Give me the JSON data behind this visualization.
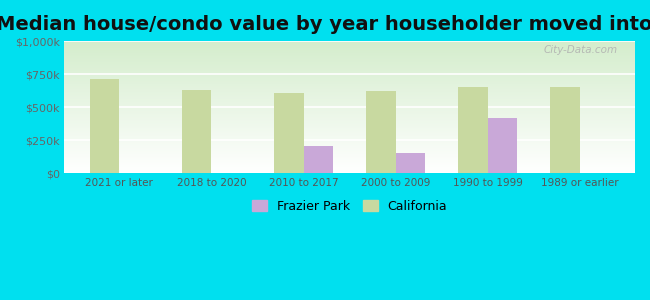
{
  "title": "Median house/condo value by year householder moved into unit",
  "categories": [
    "2021 or later",
    "2018 to 2020",
    "2010 to 2017",
    "2000 to 2009",
    "1990 to 1999",
    "1989 or earlier"
  ],
  "frazier_park": [
    null,
    null,
    210000,
    155000,
    420000,
    null
  ],
  "california": [
    710000,
    630000,
    605000,
    620000,
    650000,
    655000
  ],
  "frazier_color": "#c9a8d8",
  "california_color": "#c8d9a0",
  "background_color": "#00e0ef",
  "ylabel_ticks": [
    "$0",
    "$250k",
    "$500k",
    "$750k",
    "$1,000k"
  ],
  "ytick_values": [
    0,
    250000,
    500000,
    750000,
    1000000
  ],
  "ylim": [
    0,
    1000000
  ],
  "title_fontsize": 14,
  "watermark": "City-Data.com",
  "bar_width": 0.32,
  "legend_frazier": "Frazier Park",
  "legend_california": "California"
}
